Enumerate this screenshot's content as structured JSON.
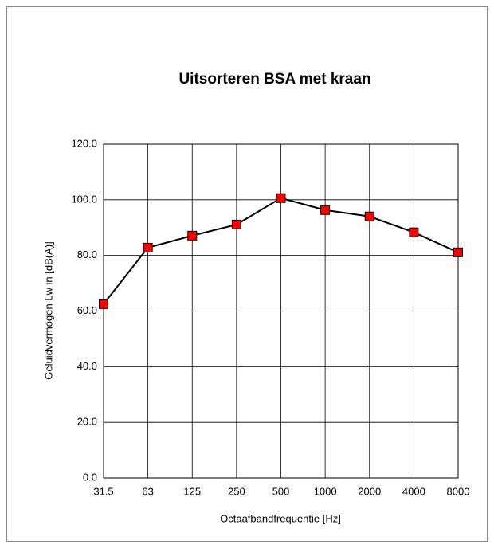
{
  "chart_data": {
    "type": "line",
    "title": "Uitsorteren BSA met kraan",
    "x_label": "Octaafbandfrequentie [Hz]",
    "y_label": "Geluidvermogen Lw in  [dB(A)]",
    "categories": [
      "31.5",
      "63",
      "125",
      "250",
      "500",
      "1000",
      "2000",
      "4000",
      "8000"
    ],
    "series": [
      {
        "color": "#ff0000",
        "line_color": "#000000",
        "values": [
          62.5,
          82.8,
          87.1,
          91.1,
          100.6,
          96.3,
          94.0,
          88.3,
          81.1
        ]
      }
    ],
    "ylim": [
      0,
      120
    ],
    "yticks": [
      {
        "value": 0,
        "label": "0.0"
      },
      {
        "value": 20,
        "label": "20.0"
      },
      {
        "value": 40,
        "label": "40.0"
      },
      {
        "value": 60,
        "label": "60.0"
      },
      {
        "value": 80,
        "label": "80.0"
      },
      {
        "value": 100,
        "label": "100.0"
      },
      {
        "value": 120,
        "label": "120.0"
      }
    ],
    "grid": true
  }
}
